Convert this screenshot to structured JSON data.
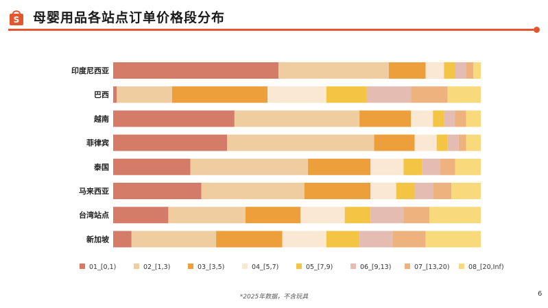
{
  "header": {
    "title": "母婴用品各站点订单价格段分布"
  },
  "chart_data": {
    "type": "bar",
    "orientation": "horizontal",
    "stacked": true,
    "percent": true,
    "xlim": [
      0,
      100
    ],
    "categories": [
      "印度尼西亚",
      "巴西",
      "越南",
      "菲律宾",
      "泰国",
      "马来西亚",
      "台湾站点",
      "新加坡"
    ],
    "series": [
      {
        "name": "01_[0,1)",
        "color": "#d47c68",
        "values": [
          45,
          1,
          33,
          31,
          21,
          24,
          15,
          5
        ]
      },
      {
        "name": "02_[1,3)",
        "color": "#f0cda1",
        "values": [
          30,
          15,
          34,
          40,
          32,
          28,
          21,
          23
        ]
      },
      {
        "name": "03_[3,5)",
        "color": "#ec9f3a",
        "values": [
          10,
          26,
          14,
          11,
          17,
          18,
          15,
          18
        ]
      },
      {
        "name": "04_[5,7)",
        "color": "#fae8d3",
        "values": [
          5,
          16,
          6,
          6,
          9,
          7,
          12,
          12
        ]
      },
      {
        "name": "05_[7,9)",
        "color": "#f4c445",
        "values": [
          3,
          11,
          3,
          3,
          5,
          5,
          7,
          9
        ]
      },
      {
        "name": "06_[9,13)",
        "color": "#e4bcb2",
        "values": [
          3,
          12,
          3,
          3,
          5,
          5,
          9,
          9
        ]
      },
      {
        "name": "07_[13,20)",
        "color": "#eeb27f",
        "values": [
          2,
          10,
          3,
          2,
          4,
          5,
          7,
          9
        ]
      },
      {
        "name": "08_[20,Inf)",
        "color": "#f8d97b",
        "values": [
          2,
          9,
          4,
          4,
          7,
          8,
          14,
          15
        ]
      }
    ]
  },
  "footnote": "*2025年数据，不含玩具",
  "page_number": "6"
}
